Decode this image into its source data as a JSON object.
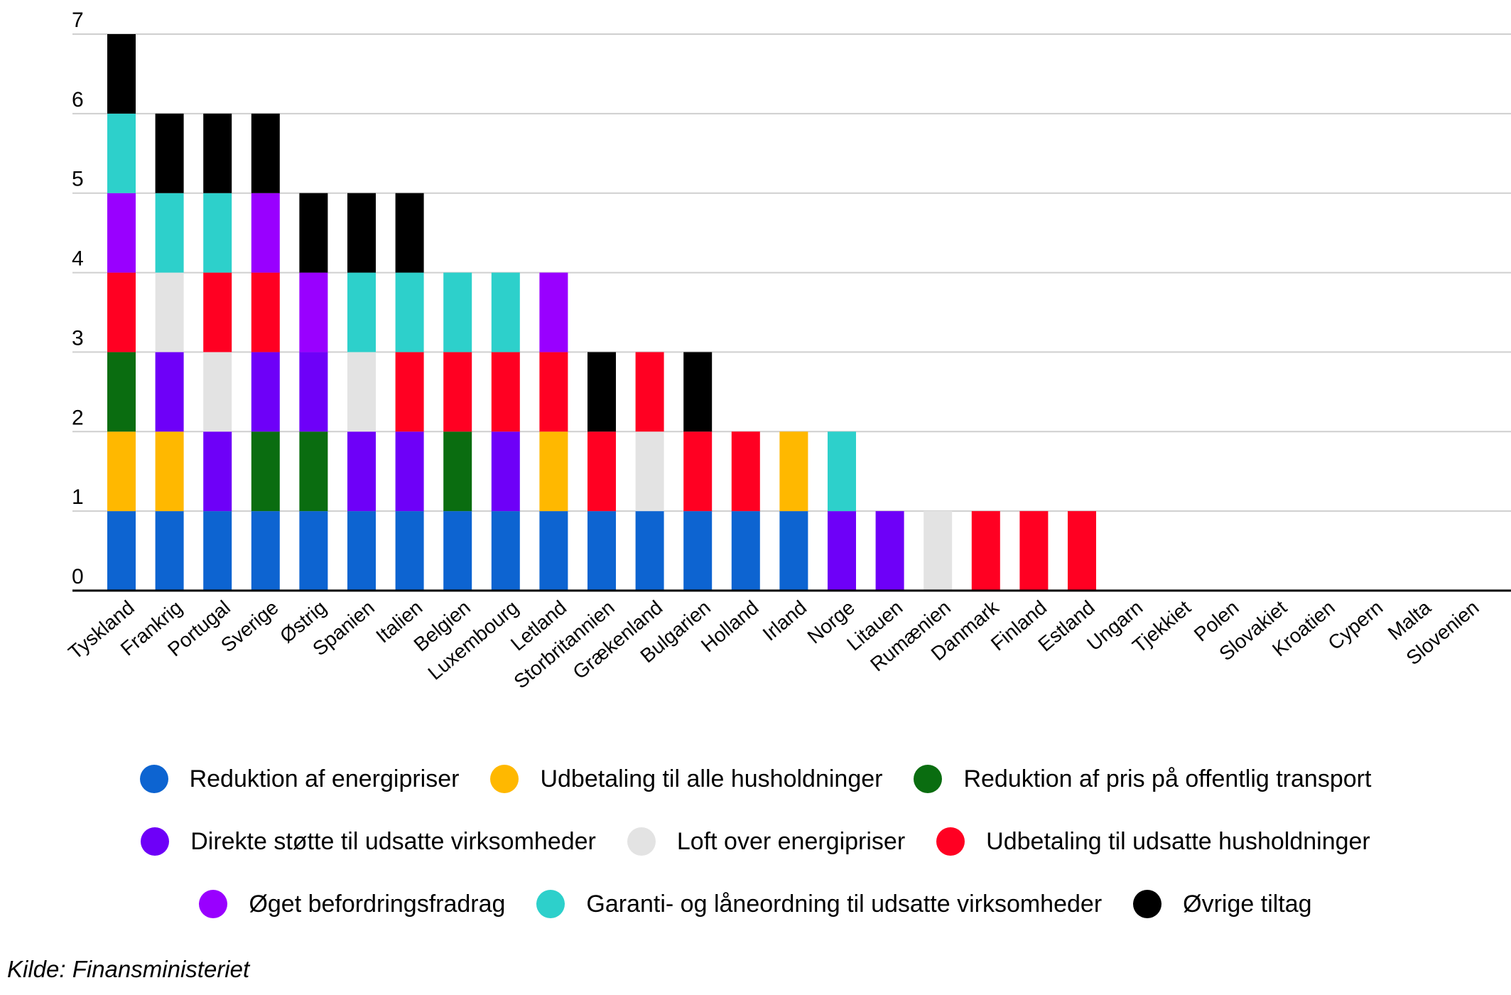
{
  "chart_data": {
    "type": "bar",
    "stacked": true,
    "ylim": [
      0,
      7
    ],
    "yticks": [
      0,
      1,
      2,
      3,
      4,
      5,
      6,
      7
    ],
    "grid": true,
    "categories": [
      "Tyskland",
      "Frankrig",
      "Portugal",
      "Sverige",
      "Østrig",
      "Spanien",
      "Italien",
      "Belgien",
      "Luxembourg",
      "Letland",
      "Storbritannien",
      "Grækenland",
      "Bulgarien",
      "Holland",
      "Irland",
      "Norge",
      "Litauen",
      "Rumænien",
      "Danmark",
      "Finland",
      "Estland",
      "Ungarn",
      "Tjekkiet",
      "Polen",
      "Slovakiet",
      "Kroatien",
      "Cypern",
      "Malta",
      "Slovenien"
    ],
    "series": [
      {
        "name": "Reduktion af energipriser",
        "color": "#0d64d1",
        "values": [
          1,
          1,
          1,
          1,
          1,
          1,
          1,
          1,
          1,
          1,
          1,
          1,
          1,
          1,
          1,
          0,
          0,
          0,
          0,
          0,
          0,
          0,
          0,
          0,
          0,
          0,
          0,
          0,
          0
        ]
      },
      {
        "name": "Udbetaling til alle husholdninger",
        "color": "#ffb800",
        "values": [
          1,
          1,
          0,
          0,
          0,
          0,
          0,
          0,
          0,
          1,
          0,
          0,
          0,
          0,
          1,
          0,
          0,
          0,
          0,
          0,
          0,
          0,
          0,
          0,
          0,
          0,
          0,
          0,
          0
        ]
      },
      {
        "name": "Reduktion af pris på offentlig transport",
        "color": "#0a6d10",
        "values": [
          1,
          0,
          0,
          1,
          1,
          0,
          0,
          1,
          0,
          0,
          0,
          0,
          0,
          0,
          0,
          0,
          0,
          0,
          0,
          0,
          0,
          0,
          0,
          0,
          0,
          0,
          0,
          0,
          0
        ]
      },
      {
        "name": "Direkte støtte til udsatte virksomheder",
        "color": "#6e00f8",
        "values": [
          0,
          1,
          1,
          1,
          1,
          1,
          1,
          0,
          1,
          0,
          0,
          0,
          0,
          0,
          0,
          1,
          1,
          0,
          0,
          0,
          0,
          0,
          0,
          0,
          0,
          0,
          0,
          0,
          0
        ]
      },
      {
        "name": "Loft over energipriser",
        "color": "#e3e3e3",
        "values": [
          0,
          1,
          1,
          0,
          0,
          1,
          0,
          0,
          0,
          0,
          0,
          1,
          0,
          0,
          0,
          0,
          0,
          1,
          0,
          0,
          0,
          0,
          0,
          0,
          0,
          0,
          0,
          0,
          0
        ]
      },
      {
        "name": "Udbetaling til udsatte husholdninger",
        "color": "#ff0022",
        "values": [
          1,
          0,
          1,
          1,
          0,
          0,
          1,
          1,
          1,
          1,
          1,
          1,
          1,
          1,
          0,
          0,
          0,
          0,
          1,
          1,
          1,
          0,
          0,
          0,
          0,
          0,
          0,
          0,
          0
        ]
      },
      {
        "name": "Øget befordringsfradrag",
        "color": "#9900ff",
        "values": [
          1,
          0,
          0,
          1,
          1,
          0,
          0,
          0,
          0,
          1,
          0,
          0,
          0,
          0,
          0,
          0,
          0,
          0,
          0,
          0,
          0,
          0,
          0,
          0,
          0,
          0,
          0,
          0,
          0
        ]
      },
      {
        "name": "Garanti- og låneordning til udsatte virksomheder",
        "color": "#2dd0cb",
        "values": [
          1,
          1,
          1,
          0,
          0,
          1,
          1,
          1,
          1,
          0,
          0,
          0,
          0,
          0,
          0,
          1,
          0,
          0,
          0,
          0,
          0,
          0,
          0,
          0,
          0,
          0,
          0,
          0,
          0
        ]
      },
      {
        "name": "Øvrige tiltag",
        "color": "#000000",
        "values": [
          1,
          1,
          1,
          1,
          1,
          1,
          1,
          0,
          0,
          0,
          1,
          0,
          1,
          0,
          0,
          0,
          0,
          0,
          0,
          0,
          0,
          0,
          0,
          0,
          0,
          0,
          0,
          0,
          0
        ]
      }
    ],
    "stack_order": [
      [
        "Reduktion af energipriser",
        "Udbetaling til alle husholdninger",
        "Reduktion af pris på offentlig transport",
        "Udbetaling til udsatte husholdninger",
        "Øget befordringsfradrag",
        "Garanti- og låneordning til udsatte virksomheder",
        "Øvrige tiltag"
      ],
      [
        "Reduktion af energipriser",
        "Udbetaling til alle husholdninger",
        "Direkte støtte til udsatte virksomheder",
        "Loft over energipriser",
        "Garanti- og låneordning til udsatte virksomheder",
        "Øvrige tiltag"
      ],
      [
        "Reduktion af energipriser",
        "Direkte støtte til udsatte virksomheder",
        "Loft over energipriser",
        "Udbetaling til udsatte husholdninger",
        "Garanti- og låneordning til udsatte virksomheder",
        "Øvrige tiltag"
      ],
      [
        "Reduktion af energipriser",
        "Reduktion af pris på offentlig transport",
        "Direkte støtte til udsatte virksomheder",
        "Udbetaling til udsatte husholdninger",
        "Øget befordringsfradrag",
        "Øvrige tiltag"
      ],
      [
        "Reduktion af energipriser",
        "Reduktion af pris på offentlig transport",
        "Direkte støtte til udsatte virksomheder",
        "Øget befordringsfradrag",
        "Øvrige tiltag"
      ],
      [
        "Reduktion af energipriser",
        "Direkte støtte til udsatte virksomheder",
        "Loft over energipriser",
        "Garanti- og låneordning til udsatte virksomheder",
        "Øvrige tiltag"
      ],
      [
        "Reduktion af energipriser",
        "Direkte støtte til udsatte virksomheder",
        "Udbetaling til udsatte husholdninger",
        "Garanti- og låneordning til udsatte virksomheder",
        "Øvrige tiltag"
      ],
      [
        "Reduktion af energipriser",
        "Reduktion af pris på offentlig transport",
        "Udbetaling til udsatte husholdninger",
        "Garanti- og låneordning til udsatte virksomheder"
      ],
      [
        "Reduktion af energipriser",
        "Direkte støtte til udsatte virksomheder",
        "Udbetaling til udsatte husholdninger",
        "Garanti- og låneordning til udsatte virksomheder"
      ],
      [
        "Reduktion af energipriser",
        "Udbetaling til alle husholdninger",
        "Udbetaling til udsatte husholdninger",
        "Øget befordringsfradrag"
      ],
      [
        "Reduktion af energipriser",
        "Udbetaling til udsatte husholdninger",
        "Øvrige tiltag"
      ],
      [
        "Reduktion af energipriser",
        "Loft over energipriser",
        "Udbetaling til udsatte husholdninger"
      ],
      [
        "Reduktion af energipriser",
        "Udbetaling til udsatte husholdninger",
        "Øvrige tiltag"
      ],
      [
        "Reduktion af energipriser",
        "Udbetaling til udsatte husholdninger"
      ],
      [
        "Reduktion af energipriser",
        "Udbetaling til alle husholdninger"
      ],
      [
        "Direkte støtte til udsatte virksomheder",
        "Garanti- og låneordning til udsatte virksomheder"
      ],
      [
        "Direkte støtte til udsatte virksomheder"
      ],
      [
        "Loft over energipriser"
      ],
      [
        "Udbetaling til udsatte husholdninger"
      ],
      [
        "Udbetaling til udsatte husholdninger"
      ],
      [
        "Udbetaling til udsatte husholdninger"
      ],
      [],
      [],
      [],
      [],
      [],
      [],
      [],
      []
    ],
    "legend_rows": [
      [
        "Reduktion af energipriser",
        "Udbetaling til alle husholdninger",
        "Reduktion af pris på offentlig transport"
      ],
      [
        "Direkte støtte til udsatte virksomheder",
        "Loft over energipriser",
        "Udbetaling til udsatte husholdninger"
      ],
      [
        "Øget befordringsfradrag",
        "Garanti- og låneordning til udsatte virksomheder",
        "Øvrige tiltag"
      ]
    ],
    "legend_position": "bottom"
  },
  "source": "Kilde: Finansministeriet"
}
